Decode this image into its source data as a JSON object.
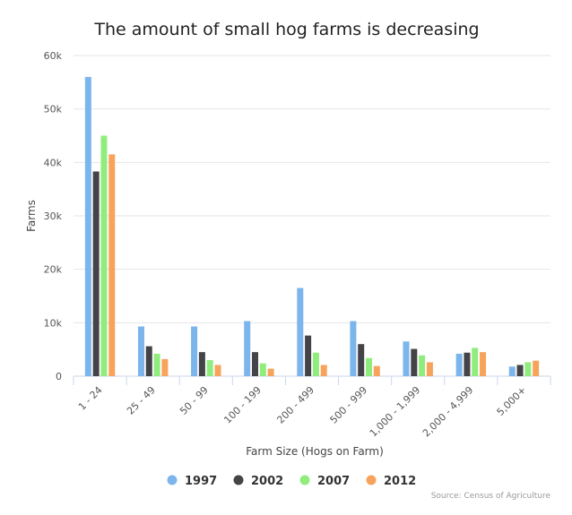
{
  "chart_data": {
    "type": "bar",
    "title": "The amount of small hog farms is decreasing",
    "xlabel": "Farm Size (Hogs on Farm)",
    "ylabel": "Farms",
    "ylim": [
      0,
      60000
    ],
    "y_ticks": [
      0,
      10000,
      20000,
      30000,
      40000,
      50000,
      60000
    ],
    "y_tick_labels": [
      "0",
      "10k",
      "20k",
      "30k",
      "40k",
      "50k",
      "60k"
    ],
    "grid": true,
    "legend_position": "bottom-center",
    "categories": [
      "1 - 24",
      "25 - 49",
      "50 - 99",
      "100 - 199",
      "200 - 499",
      "500 - 999",
      "1,000 - 1,999",
      "2,000 - 4,999",
      "5,000+"
    ],
    "series": [
      {
        "name": "1997",
        "color": "#7cb5ec",
        "values": [
          56000,
          9300,
          9300,
          10300,
          16500,
          10300,
          6500,
          4200,
          1800
        ]
      },
      {
        "name": "2002",
        "color": "#434348",
        "values": [
          38300,
          5600,
          4500,
          4500,
          7600,
          6000,
          5100,
          4400,
          2100
        ]
      },
      {
        "name": "2007",
        "color": "#90ed7d",
        "values": [
          45000,
          4200,
          3000,
          2400,
          4400,
          3400,
          3900,
          5300,
          2600
        ]
      },
      {
        "name": "2012",
        "color": "#f7a35c",
        "values": [
          41500,
          3200,
          2100,
          1400,
          2100,
          1900,
          2600,
          4500,
          2900
        ]
      }
    ],
    "credits": "Source: Census of Agriculture"
  }
}
